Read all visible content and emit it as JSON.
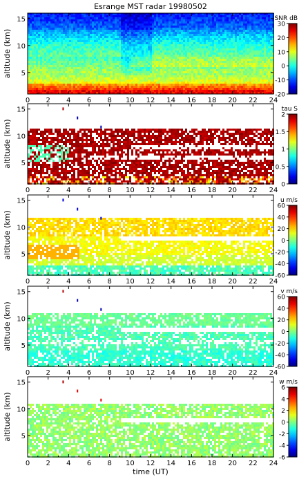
{
  "chart_data": [
    {
      "type": "heatmap",
      "title": "Esrange MST radar 19980502",
      "ylabel": "altitude (km)",
      "xlabel": "",
      "x_ticks": [
        "0",
        "2",
        "4",
        "6",
        "8",
        "10",
        "12",
        "14",
        "16",
        "18",
        "20",
        "22",
        "24"
      ],
      "y_ticks": [
        "5",
        "10",
        "15"
      ],
      "xlim": [
        0,
        24
      ],
      "ylim": [
        1,
        16
      ],
      "colorbar": {
        "label": "SNR dB",
        "range": [
          -20,
          30
        ],
        "ticks": [
          "30",
          "20",
          "10",
          "0",
          "-10",
          "-20"
        ]
      }
    },
    {
      "type": "heatmap",
      "title": "",
      "ylabel": "altitude (km)",
      "xlabel": "",
      "x_ticks": [
        "0",
        "2",
        "4",
        "6",
        "8",
        "10",
        "12",
        "14",
        "16",
        "18",
        "20",
        "22",
        "24"
      ],
      "y_ticks": [
        "5",
        "10",
        "15"
      ],
      "xlim": [
        0,
        24
      ],
      "ylim": [
        1,
        16
      ],
      "colorbar": {
        "label": "tau S",
        "range": [
          0,
          2
        ],
        "ticks": [
          "2",
          "1.5",
          "1",
          "0.5",
          "0"
        ]
      }
    },
    {
      "type": "heatmap",
      "title": "",
      "ylabel": "altitude (km)",
      "xlabel": "",
      "x_ticks": [
        "0",
        "2",
        "4",
        "6",
        "8",
        "10",
        "12",
        "14",
        "16",
        "18",
        "20",
        "22",
        "24"
      ],
      "y_ticks": [
        "5",
        "10",
        "15"
      ],
      "xlim": [
        0,
        24
      ],
      "ylim": [
        1,
        16
      ],
      "colorbar": {
        "label": "u m/s",
        "range": [
          -60,
          60
        ],
        "ticks": [
          "60",
          "40",
          "20",
          "0",
          "-20",
          "-40",
          "-60"
        ]
      }
    },
    {
      "type": "heatmap",
      "title": "",
      "ylabel": "altitude (km)",
      "xlabel": "",
      "x_ticks": [
        "0",
        "2",
        "4",
        "6",
        "8",
        "10",
        "12",
        "14",
        "16",
        "18",
        "20",
        "22",
        "24"
      ],
      "y_ticks": [
        "5",
        "10",
        "15"
      ],
      "xlim": [
        0,
        24
      ],
      "ylim": [
        1,
        16
      ],
      "colorbar": {
        "label": "v m/s",
        "range": [
          -60,
          60
        ],
        "ticks": [
          "60",
          "40",
          "20",
          "0",
          "-20",
          "-40",
          "-60"
        ]
      }
    },
    {
      "type": "heatmap",
      "title": "",
      "ylabel": "altitude (km)",
      "xlabel": "time (UT)",
      "x_ticks": [
        "0",
        "2",
        "4",
        "6",
        "8",
        "10",
        "12",
        "14",
        "16",
        "18",
        "20",
        "22",
        "24"
      ],
      "y_ticks": [
        "5",
        "10",
        "15"
      ],
      "xlim": [
        0,
        24
      ],
      "ylim": [
        1,
        16
      ],
      "colorbar": {
        "label": "w m/s",
        "range": [
          -6,
          6
        ],
        "ticks": [
          "6",
          "4",
          "2",
          "0",
          "-2",
          "-4",
          "-6"
        ]
      }
    }
  ]
}
